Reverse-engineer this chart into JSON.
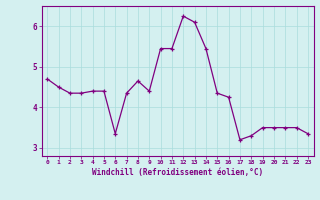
{
  "x": [
    0,
    1,
    2,
    3,
    4,
    5,
    6,
    7,
    8,
    9,
    10,
    11,
    12,
    13,
    14,
    15,
    16,
    17,
    18,
    19,
    20,
    21,
    22,
    23
  ],
  "y": [
    4.7,
    4.5,
    4.35,
    4.35,
    4.4,
    4.4,
    3.35,
    4.35,
    4.65,
    4.4,
    5.45,
    5.45,
    6.25,
    6.1,
    5.45,
    4.35,
    4.25,
    3.2,
    3.3,
    3.5,
    3.5,
    3.5,
    3.5,
    3.35
  ],
  "line_color": "#800080",
  "marker": "+",
  "marker_color": "#800080",
  "bg_color": "#d4f0f0",
  "grid_color": "#aadddd",
  "xlabel": "Windchill (Refroidissement éolien,°C)",
  "xlabel_color": "#800080",
  "tick_color": "#800080",
  "ylim": [
    2.8,
    6.5
  ],
  "xlim": [
    -0.5,
    23.5
  ],
  "yticks": [
    3,
    4,
    5,
    6
  ],
  "xticks": [
    0,
    1,
    2,
    3,
    4,
    5,
    6,
    7,
    8,
    9,
    10,
    11,
    12,
    13,
    14,
    15,
    16,
    17,
    18,
    19,
    20,
    21,
    22,
    23
  ],
  "xtick_labels": [
    "0",
    "1",
    "2",
    "3",
    "4",
    "5",
    "6",
    "7",
    "8",
    "9",
    "10",
    "11",
    "12",
    "13",
    "14",
    "15",
    "16",
    "17",
    "18",
    "19",
    "20",
    "21",
    "22",
    "23"
  ],
  "spine_color": "#800080",
  "figsize": [
    3.2,
    2.0
  ],
  "dpi": 100
}
